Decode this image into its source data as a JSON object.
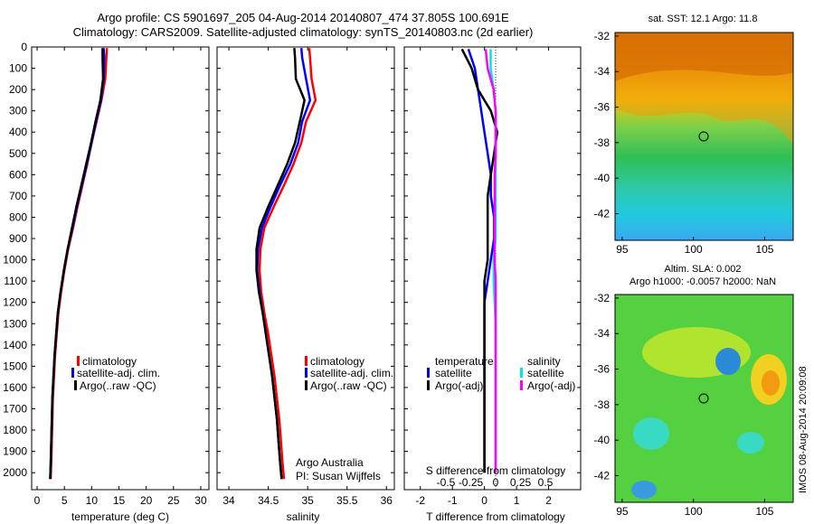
{
  "figure": {
    "title_line1": "Argo profile: CS 5901697_205 04-Aug-2014 20140807_474 37.805S 100.691E",
    "title_line2": "Climatology: CARS2009. Satellite-adjusted climatology: synTS_20140803.nc (2d earlier)",
    "stamp": "IMOS 08-Aug-2014 20:09:08",
    "credit_line1": "Argo Australia",
    "credit_line2": "PI: Susan Wijffels"
  },
  "colors": {
    "climatology": "#ff0000",
    "satellite": "#0000ff",
    "argo": "#000000",
    "sal_satellite": "#00e5e5",
    "sal_argo": "#ff00ff"
  },
  "chart_data": [
    {
      "type": "line",
      "name": "temperature-profile",
      "xlabel": "temperature (deg C)",
      "ylabel": "",
      "xlim": [
        -1,
        31.5
      ],
      "ylim": [
        2080,
        0
      ],
      "xticks": [
        0,
        5,
        10,
        15,
        20,
        25,
        30
      ],
      "yticks": [
        0,
        100,
        200,
        300,
        400,
        500,
        600,
        700,
        800,
        900,
        1000,
        1100,
        1200,
        1300,
        1400,
        1500,
        1600,
        1700,
        1800,
        1900,
        2000
      ],
      "legend": [
        "climatology",
        "satellite-adj. clim.",
        "Argo(..raw -QC)"
      ],
      "series": [
        {
          "name": "climatology",
          "color": "#ff0000",
          "x": [
            12.8,
            12.7,
            12.5,
            11.8,
            10.9,
            10.0,
            9.2,
            8.3,
            7.4,
            6.6,
            5.7,
            5.0,
            4.4,
            3.9,
            3.6,
            3.3,
            3.1,
            2.9,
            2.8,
            2.7,
            2.6,
            2.5
          ],
          "y": [
            5,
            50,
            150,
            250,
            350,
            450,
            550,
            650,
            750,
            850,
            950,
            1050,
            1150,
            1250,
            1350,
            1450,
            1550,
            1650,
            1750,
            1850,
            1950,
            2030
          ]
        },
        {
          "name": "satellite-adj. clim.",
          "color": "#0000ff",
          "x": [
            12.2,
            12.3,
            12.2,
            11.7,
            10.8,
            10.0,
            9.1,
            8.2,
            7.3,
            6.5,
            5.6,
            4.9,
            4.3,
            3.8,
            3.5,
            3.2,
            3.0,
            2.8,
            2.7,
            2.6,
            2.5,
            2.4
          ],
          "y": [
            5,
            50,
            150,
            250,
            350,
            450,
            550,
            650,
            750,
            850,
            950,
            1050,
            1150,
            1250,
            1350,
            1450,
            1550,
            1650,
            1750,
            1850,
            1950,
            2030
          ]
        },
        {
          "name": "Argo(..raw -QC)",
          "color": "#000000",
          "x": [
            12.0,
            12.0,
            12.1,
            11.6,
            10.7,
            9.9,
            9.0,
            8.1,
            7.2,
            6.4,
            5.6,
            4.9,
            4.3,
            3.8,
            3.5,
            3.2,
            3.0,
            2.8,
            2.7,
            2.6,
            2.5,
            2.4
          ],
          "y": [
            5,
            50,
            150,
            250,
            350,
            450,
            550,
            650,
            750,
            850,
            950,
            1050,
            1150,
            1250,
            1350,
            1450,
            1550,
            1650,
            1750,
            1850,
            1950,
            2030
          ]
        }
      ]
    },
    {
      "type": "line",
      "name": "salinity-profile",
      "xlabel": "salinity",
      "ylabel": "",
      "xlim": [
        33.85,
        36.1
      ],
      "ylim": [
        2080,
        0
      ],
      "xticks": [
        34,
        34.5,
        35,
        35.5,
        36
      ],
      "xticklabels": [
        "34",
        "34.5",
        "35",
        "35.5",
        "36"
      ],
      "legend": [
        "climatology",
        "satellite-adj. clim.",
        "Argo(..raw -QC)"
      ],
      "series": [
        {
          "name": "climatology",
          "color": "#ff0000",
          "x": [
            35.02,
            35.03,
            35.05,
            35.1,
            34.98,
            34.92,
            34.82,
            34.7,
            34.57,
            34.45,
            34.4,
            34.39,
            34.41,
            34.45,
            34.5,
            34.54,
            34.58,
            34.61,
            34.64,
            34.66,
            34.68,
            34.7
          ],
          "y": [
            5,
            50,
            150,
            250,
            350,
            450,
            550,
            650,
            750,
            850,
            950,
            1050,
            1150,
            1250,
            1350,
            1450,
            1550,
            1650,
            1750,
            1850,
            1950,
            2030
          ]
        },
        {
          "name": "satellite-adj. clim.",
          "color": "#0000ff",
          "x": [
            34.92,
            34.93,
            34.98,
            35.03,
            34.93,
            34.88,
            34.78,
            34.65,
            34.53,
            34.42,
            34.37,
            34.36,
            34.39,
            34.43,
            34.47,
            34.51,
            34.55,
            34.58,
            34.61,
            34.63,
            34.65,
            34.67
          ],
          "y": [
            5,
            50,
            150,
            250,
            350,
            450,
            550,
            650,
            750,
            850,
            950,
            1050,
            1150,
            1250,
            1350,
            1450,
            1550,
            1650,
            1750,
            1850,
            1950,
            2030
          ]
        },
        {
          "name": "Argo(..raw -QC)",
          "color": "#000000",
          "x": [
            34.83,
            34.84,
            34.85,
            34.96,
            34.9,
            34.84,
            34.74,
            34.62,
            34.5,
            34.39,
            34.35,
            34.35,
            34.38,
            34.43,
            34.47,
            34.51,
            34.55,
            34.58,
            34.61,
            34.63,
            34.65,
            34.67
          ],
          "y": [
            5,
            50,
            150,
            250,
            350,
            450,
            550,
            650,
            750,
            850,
            950,
            1050,
            1150,
            1250,
            1350,
            1450,
            1550,
            1650,
            1750,
            1850,
            1950,
            2030
          ]
        }
      ]
    },
    {
      "type": "line",
      "name": "difference-profile",
      "xlabel": "T difference from climatology",
      "xlabel_top": "S difference from climatology",
      "xlim": [
        -2.5,
        3
      ],
      "ylim": [
        2080,
        0
      ],
      "xticks": [
        -2,
        -1,
        0,
        1,
        2
      ],
      "xticks_top": [
        -0.5,
        -0.25,
        0,
        0.25,
        0.5
      ],
      "xticklabels_top": [
        "-0.5",
        "-0.25",
        "0",
        "0.25",
        "0.5"
      ],
      "legend_titles": [
        "temperature",
        "salinity"
      ],
      "legend": [
        "satellite",
        "Argo(-adj)",
        "satellite",
        "Argo(-adj)"
      ],
      "series": [
        {
          "name": "satellite",
          "quantity": "temperature",
          "color": "#0000ff",
          "x": [
            -0.5,
            -0.3,
            -0.2,
            -0.1,
            0,
            0.1,
            0.2,
            0.2,
            0.3,
            0.3,
            0.2,
            0.1,
            0,
            0,
            0,
            0,
            0,
            0,
            0,
            0,
            0
          ],
          "y": [
            10,
            100,
            200,
            300,
            400,
            500,
            600,
            700,
            800,
            900,
            1000,
            1100,
            1200,
            1300,
            1400,
            1500,
            1600,
            1700,
            1800,
            1900,
            2000
          ]
        },
        {
          "name": "Argo(-adj)",
          "quantity": "temperature",
          "color": "#000000",
          "x": [
            -0.7,
            -0.4,
            -0.2,
            0.2,
            0.4,
            0.3,
            0.2,
            0.1,
            0.1,
            0.1,
            0.1,
            0,
            0,
            0,
            0,
            0,
            0,
            0,
            0,
            0,
            0
          ],
          "y": [
            10,
            100,
            200,
            300,
            400,
            500,
            600,
            700,
            800,
            900,
            1000,
            1100,
            1200,
            1300,
            1400,
            1500,
            1600,
            1700,
            1800,
            1900,
            2000
          ]
        },
        {
          "name": "satellite",
          "quantity": "salinity",
          "color": "#00e5e5",
          "x": [
            -0.05,
            -0.05,
            -0.02,
            0,
            0,
            0,
            0,
            0,
            0,
            0,
            -0.02,
            -0.02,
            -0.01,
            0,
            0,
            0,
            0,
            0,
            0,
            0,
            0
          ],
          "y": [
            10,
            100,
            200,
            300,
            400,
            500,
            600,
            700,
            800,
            900,
            1000,
            1100,
            1200,
            1300,
            1400,
            1500,
            1600,
            1700,
            1800,
            1900,
            2000
          ]
        },
        {
          "name": "Argo(-adj)",
          "quantity": "salinity",
          "color": "#ff00ff",
          "x": [
            -0.1,
            -0.08,
            -0.02,
            0,
            0,
            0,
            -0.01,
            -0.01,
            -0.01,
            -0.01,
            -0.01,
            0,
            0,
            0,
            0,
            0,
            0,
            0,
            0,
            0,
            0
          ],
          "y": [
            10,
            100,
            200,
            300,
            400,
            500,
            600,
            700,
            800,
            900,
            1000,
            1100,
            1200,
            1300,
            1400,
            1500,
            1600,
            1700,
            1800,
            1900,
            2000
          ]
        }
      ]
    },
    {
      "type": "heatmap",
      "name": "sst-map",
      "title": "sat. SST: 12.1  Argo: 11.8",
      "xlim": [
        94.5,
        107
      ],
      "ylim": [
        -43.5,
        -31.8
      ],
      "xticks": [
        95,
        100,
        105
      ],
      "yticks": [
        -32,
        -34,
        -36,
        -38,
        -40,
        -42
      ],
      "marker": {
        "lon": 100.691,
        "lat": -37.805
      }
    },
    {
      "type": "heatmap",
      "name": "sla-map",
      "title_line1": "Altim. SLA: 0.002",
      "title_line2": "Argo h1000: -0.0057 h2000: NaN",
      "xlim": [
        94.5,
        107
      ],
      "ylim": [
        -43.5,
        -31.8
      ],
      "xticks": [
        95,
        100,
        105
      ],
      "yticks": [
        -32,
        -34,
        -36,
        -38,
        -40,
        -42
      ],
      "marker": {
        "lon": 100.691,
        "lat": -37.805
      }
    }
  ]
}
